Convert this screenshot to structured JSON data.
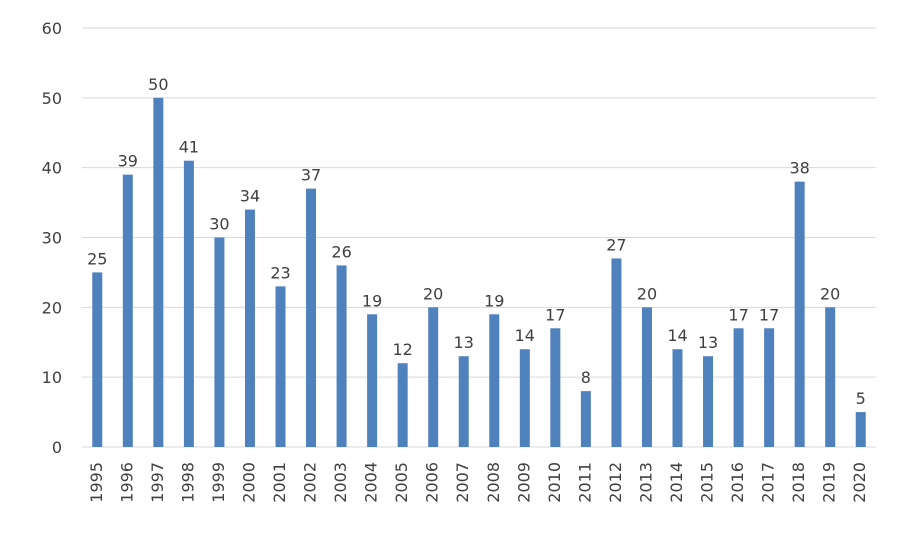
{
  "chart_data": {
    "type": "bar",
    "title": "",
    "xlabel": "",
    "ylabel": "",
    "categories": [
      "1995",
      "1996",
      "1997",
      "1998",
      "1999",
      "2000",
      "2001",
      "2002",
      "2003",
      "2004",
      "2005",
      "2006",
      "2007",
      "2008",
      "2009",
      "2010",
      "2011",
      "2012",
      "2013",
      "2014",
      "2015",
      "2016",
      "2017",
      "2018",
      "2019",
      "2020"
    ],
    "values": [
      25,
      39,
      50,
      41,
      30,
      34,
      23,
      37,
      26,
      19,
      12,
      20,
      13,
      19,
      14,
      17,
      8,
      27,
      20,
      14,
      13,
      17,
      17,
      38,
      20,
      5
    ],
    "ylim": [
      0,
      60
    ],
    "yticks": [
      0,
      10,
      20,
      30,
      40,
      50,
      60
    ],
    "grid": true,
    "legend": "none",
    "data_labels": true,
    "bar_color": "#4f81bd"
  }
}
